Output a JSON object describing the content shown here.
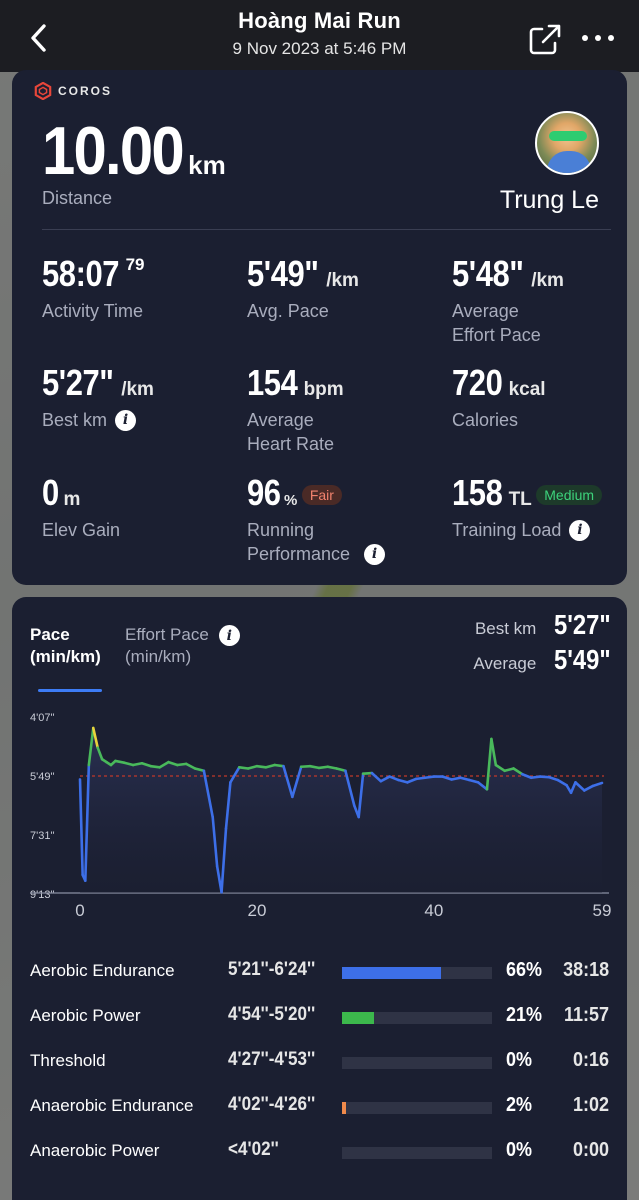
{
  "header": {
    "title": "Hoàng Mai Run",
    "date": "9 Nov 2023 at 5:46 PM"
  },
  "summary": {
    "brand": "COROS",
    "distance_value": "10.00",
    "distance_unit": "km",
    "distance_label": "Distance",
    "user_name": "Trung Le",
    "stats": {
      "activity_time": {
        "value": "58:07",
        "sup": "79",
        "label": "Activity Time"
      },
      "avg_pace": {
        "value": "5'49\"",
        "unit": "/km",
        "label": "Avg. Pace"
      },
      "effort_pace": {
        "value": "5'48\"",
        "unit": "/km",
        "label_1": "Average",
        "label_2": "Effort Pace"
      },
      "best_km": {
        "value": "5'27\"",
        "unit": "/km",
        "label": "Best km"
      },
      "heart_rate": {
        "value": "154",
        "unit": "bpm",
        "label_1": "Average",
        "label_2": "Heart Rate"
      },
      "calories": {
        "value": "720",
        "unit": "kcal",
        "label": "Calories"
      },
      "elev_gain": {
        "value": "0",
        "unit": "m",
        "label": "Elev Gain"
      },
      "running_perf": {
        "value": "96",
        "unit": "%",
        "badge": "Fair",
        "label_1": "Running",
        "label_2": "Performance"
      },
      "training_load": {
        "value": "158",
        "unit": "TL",
        "badge": "Medium",
        "label": "Training Load"
      }
    }
  },
  "chart_panel": {
    "tab_pace_1": "Pace",
    "tab_pace_2": "(min/km)",
    "tab_effort_1": "Effort Pace",
    "tab_effort_2": "(min/km)",
    "best_label": "Best km",
    "best_value": "5'27\"",
    "avg_label": "Average",
    "avg_value": "5'49\""
  },
  "chart_data": {
    "type": "line",
    "xlabel": "",
    "ylabel": "",
    "x_ticks": [
      "0",
      "20",
      "40",
      "59"
    ],
    "xlim": [
      0,
      59
    ],
    "y_ticks": [
      "4'07''",
      "5'49''",
      "7'31''",
      "9'13''"
    ],
    "y_tick_values_sec": [
      247,
      349,
      451,
      553
    ],
    "ylim_sec": [
      247,
      553
    ],
    "average_line_sec": 349,
    "series": [
      {
        "x": [
          0,
          0.3,
          0.6,
          1.0,
          1.5,
          2.0,
          2.5,
          3.0,
          3.5,
          4,
          5,
          6,
          7,
          8,
          9,
          10,
          11,
          12,
          13,
          14,
          15,
          15.5,
          16,
          16.5,
          17,
          18,
          19,
          20,
          21,
          22,
          23,
          24,
          25,
          26,
          27,
          28,
          29,
          30,
          31,
          31.5,
          32,
          33,
          34,
          35,
          36,
          37,
          38,
          39,
          40,
          41,
          42,
          43,
          44,
          45,
          46,
          46.5,
          47,
          48,
          49,
          50,
          51,
          52,
          53,
          54,
          55,
          55.5,
          56,
          57,
          58,
          59
        ],
        "pace_sec": [
          355,
          520,
          530,
          330,
          266,
          300,
          320,
          325,
          330,
          323,
          326,
          330,
          327,
          332,
          334,
          325,
          330,
          328,
          336,
          340,
          420,
          505,
          550,
          440,
          360,
          334,
          336,
          332,
          334,
          330,
          332,
          385,
          333,
          332,
          335,
          333,
          336,
          340,
          400,
          420,
          345,
          344,
          358,
          350,
          356,
          360,
          354,
          352,
          350,
          350,
          355,
          352,
          356,
          360,
          372,
          285,
          330,
          340,
          336,
          346,
          352,
          350,
          351,
          356,
          365,
          378,
          360,
          374,
          366,
          361
        ]
      }
    ]
  },
  "zones": [
    {
      "name": "Aerobic Endurance",
      "range": "5'21''-6'24''",
      "fraction": 0.66,
      "pct": "66%",
      "duration": "38:18",
      "color": "#3d6fe8"
    },
    {
      "name": "Aerobic Power",
      "range": "4'54''-5'20''",
      "fraction": 0.21,
      "pct": "21%",
      "duration": "11:57",
      "color": "#3cb84c"
    },
    {
      "name": "Threshold",
      "range": "4'27''-4'53''",
      "fraction": 0.0,
      "pct": "0%",
      "duration": "0:16",
      "color": "#e5d13a"
    },
    {
      "name": "Anaerobic Endurance",
      "range": "4'02''-4'26''",
      "fraction": 0.02,
      "pct": "2%",
      "duration": "1:02",
      "color": "#f08a4b"
    },
    {
      "name": "Anaerobic Power",
      "range": "<4'02''",
      "fraction": 0.0,
      "pct": "0%",
      "duration": "0:00",
      "color": "#e84b4b"
    }
  ],
  "colors": {
    "card_bg": "#1b1f31",
    "accent_blue": "#3d7cf5",
    "pace_blue": "#3d6fe8",
    "pace_green": "#49b95b",
    "pace_yellow": "#e8d33c",
    "avg_line": "#c0392b"
  }
}
